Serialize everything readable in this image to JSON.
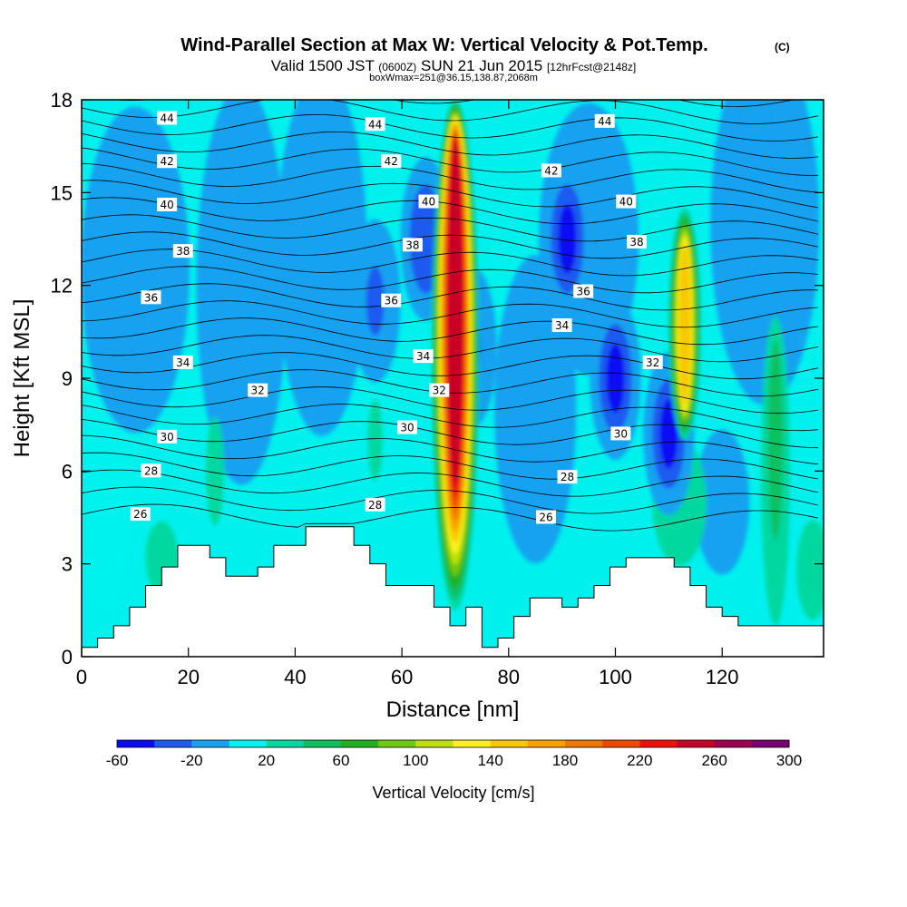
{
  "chart_data": {
    "type": "heatmap",
    "title": "Wind-Parallel Section at Max W: Vertical Velocity & Pot.Temp.",
    "title_mark": "(C)",
    "subtitle": {
      "part1": "Valid 1500 JST",
      "part2": "(0600Z)",
      "part3": "SUN 21 Jun 2015",
      "part4": "[12hrFcst@2148z]"
    },
    "subtitle2": "boxWmax=251@36.15,138.87,2068m",
    "xlabel": "Distance [nm]",
    "ylabel": "Height [Kft MSL]",
    "xlim": [
      0,
      139
    ],
    "ylim": [
      0,
      18
    ],
    "x_ticks": [
      "0",
      "20",
      "40",
      "60",
      "80",
      "100",
      "120"
    ],
    "y_ticks": [
      "0",
      "3",
      "6",
      "9",
      "12",
      "15",
      "18"
    ],
    "colorbar": {
      "label": "Vertical Velocity [cm/s]",
      "levels": [
        -60,
        -40,
        -20,
        0,
        20,
        40,
        60,
        80,
        100,
        120,
        140,
        160,
        180,
        200,
        220,
        240,
        260,
        280,
        300
      ],
      "colors": [
        "#0a0af5",
        "#1e5af0",
        "#18a2f0",
        "#00f2ee",
        "#00d8a0",
        "#10c060",
        "#20b020",
        "#70c810",
        "#c0e010",
        "#fef01c",
        "#f8c800",
        "#f8a000",
        "#f07800",
        "#f04800",
        "#f01010",
        "#c80028",
        "#a00050",
        "#780070"
      ],
      "tick_labels": [
        "-60",
        "-20",
        "20",
        "60",
        "100",
        "140",
        "180",
        "220",
        "260",
        "300"
      ]
    },
    "updrafts": [
      {
        "x": 70,
        "y0": 1.5,
        "y1": 18,
        "max": 251
      },
      {
        "x": 113,
        "y0": 7,
        "y1": 14.5,
        "max": 150
      }
    ],
    "downdrafts": [
      {
        "x": 91,
        "y": 13.5,
        "min": -45
      },
      {
        "x": 100,
        "y": 9,
        "min": -45
      },
      {
        "x": 110,
        "y": 7.2,
        "min": -50
      },
      {
        "x": 64.5,
        "y": 13.5,
        "min": -40
      },
      {
        "x": 73,
        "y": 10,
        "min": -30
      },
      {
        "x": 55,
        "y": 11.5,
        "min": -25
      }
    ],
    "terrain": {
      "x": [
        0,
        3,
        6,
        9,
        12,
        15,
        18,
        21,
        24,
        27,
        30,
        33,
        36,
        39,
        42,
        45,
        48,
        51,
        54,
        57,
        60,
        63,
        66,
        69,
        72,
        75,
        78,
        81,
        84,
        87,
        90,
        93,
        96,
        99,
        102,
        105,
        108,
        111,
        114,
        117,
        120,
        123,
        126,
        129,
        132,
        135,
        139
      ],
      "height": [
        0.3,
        0.6,
        1.0,
        1.6,
        2.3,
        2.9,
        3.6,
        3.6,
        3.2,
        2.6,
        2.6,
        2.9,
        3.6,
        3.6,
        4.2,
        4.2,
        4.2,
        3.6,
        3.0,
        2.3,
        2.3,
        2.3,
        1.6,
        1.0,
        1.6,
        0.3,
        0.6,
        1.3,
        1.9,
        1.9,
        1.6,
        1.9,
        2.3,
        2.9,
        3.2,
        3.2,
        3.2,
        2.9,
        2.3,
        1.6,
        1.3,
        1.0,
        1.0,
        1.0,
        1.0,
        1.0,
        1.0
      ]
    },
    "theta_labels": [
      {
        "x": 16,
        "y": 17.4,
        "text": "44"
      },
      {
        "x": 55,
        "y": 17.2,
        "text": "44"
      },
      {
        "x": 98,
        "y": 17.3,
        "text": "44"
      },
      {
        "x": 16,
        "y": 16.0,
        "text": "42"
      },
      {
        "x": 58,
        "y": 16.0,
        "text": "42"
      },
      {
        "x": 88,
        "y": 15.7,
        "text": "42"
      },
      {
        "x": 16,
        "y": 14.6,
        "text": "40"
      },
      {
        "x": 65,
        "y": 14.7,
        "text": "40"
      },
      {
        "x": 102,
        "y": 14.7,
        "text": "40"
      },
      {
        "x": 19,
        "y": 13.1,
        "text": "38"
      },
      {
        "x": 62,
        "y": 13.3,
        "text": "38"
      },
      {
        "x": 104,
        "y": 13.4,
        "text": "38"
      },
      {
        "x": 13,
        "y": 11.6,
        "text": "36"
      },
      {
        "x": 58,
        "y": 11.5,
        "text": "36"
      },
      {
        "x": 94,
        "y": 11.8,
        "text": "36"
      },
      {
        "x": 19,
        "y": 9.5,
        "text": "34"
      },
      {
        "x": 64,
        "y": 9.7,
        "text": "34"
      },
      {
        "x": 90,
        "y": 10.7,
        "text": "34"
      },
      {
        "x": 33,
        "y": 8.6,
        "text": "32"
      },
      {
        "x": 67,
        "y": 8.6,
        "text": "32"
      },
      {
        "x": 107,
        "y": 9.5,
        "text": "32"
      },
      {
        "x": 61,
        "y": 7.4,
        "text": "30"
      },
      {
        "x": 16,
        "y": 7.1,
        "text": "30"
      },
      {
        "x": 101,
        "y": 7.2,
        "text": "30"
      },
      {
        "x": 13,
        "y": 6.0,
        "text": "28"
      },
      {
        "x": 55,
        "y": 4.9,
        "text": "28"
      },
      {
        "x": 91,
        "y": 5.8,
        "text": "28"
      },
      {
        "x": 11,
        "y": 4.6,
        "text": "26"
      },
      {
        "x": 87,
        "y": 4.5,
        "text": "26"
      }
    ]
  }
}
